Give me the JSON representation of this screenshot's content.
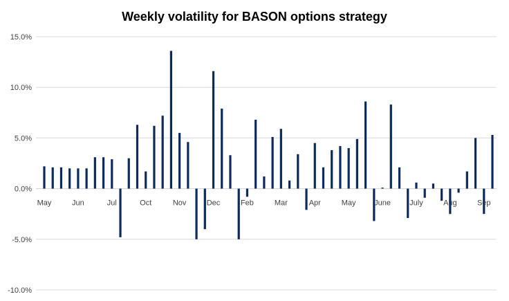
{
  "chart_data": {
    "type": "bar",
    "title": "Weekly volatility  for BASON options  strategy",
    "xlabel": "",
    "ylabel": "",
    "ylim": [
      -10,
      15
    ],
    "yticks": [
      15,
      10,
      5,
      0,
      -5,
      -10
    ],
    "ytick_labels": [
      "15.0%",
      "10.0%",
      "5.0%",
      "0.0%",
      "-5.0%",
      "-10.0%"
    ],
    "grid": true,
    "legend": "none",
    "bar_color": "#0d2a5c",
    "grid_color": "#d9d9d9",
    "month_labels": [
      {
        "label": "May",
        "week": 0
      },
      {
        "label": "Jun",
        "week": 4
      },
      {
        "label": "Jul",
        "week": 8
      },
      {
        "label": "Oct",
        "week": 12
      },
      {
        "label": "Nov",
        "week": 16
      },
      {
        "label": "Dec",
        "week": 20
      },
      {
        "label": "Feb",
        "week": 24
      },
      {
        "label": "Mar",
        "week": 28
      },
      {
        "label": "Apr",
        "week": 32
      },
      {
        "label": "May",
        "week": 36
      },
      {
        "label": "June",
        "week": 40
      },
      {
        "label": "July",
        "week": 44
      },
      {
        "label": "Aug",
        "week": 48
      },
      {
        "label": "Sep",
        "week": 52
      }
    ],
    "values": [
      2.2,
      2.1,
      2.1,
      2.0,
      2.0,
      2.0,
      3.1,
      3.1,
      2.9,
      -4.8,
      3.0,
      6.3,
      1.7,
      6.2,
      7.2,
      13.6,
      5.5,
      4.6,
      -5.0,
      -4.0,
      11.6,
      7.9,
      3.3,
      -5.0,
      -0.8,
      6.8,
      1.2,
      5.1,
      5.9,
      0.8,
      3.4,
      -2.1,
      4.5,
      2.1,
      3.8,
      4.2,
      4.0,
      4.9,
      8.6,
      -3.2,
      0.1,
      8.3,
      2.1,
      -2.9,
      0.6,
      -0.9,
      0.5,
      -1.2,
      -2.5,
      -0.4,
      1.7,
      5.0,
      -2.5,
      5.3
    ]
  }
}
